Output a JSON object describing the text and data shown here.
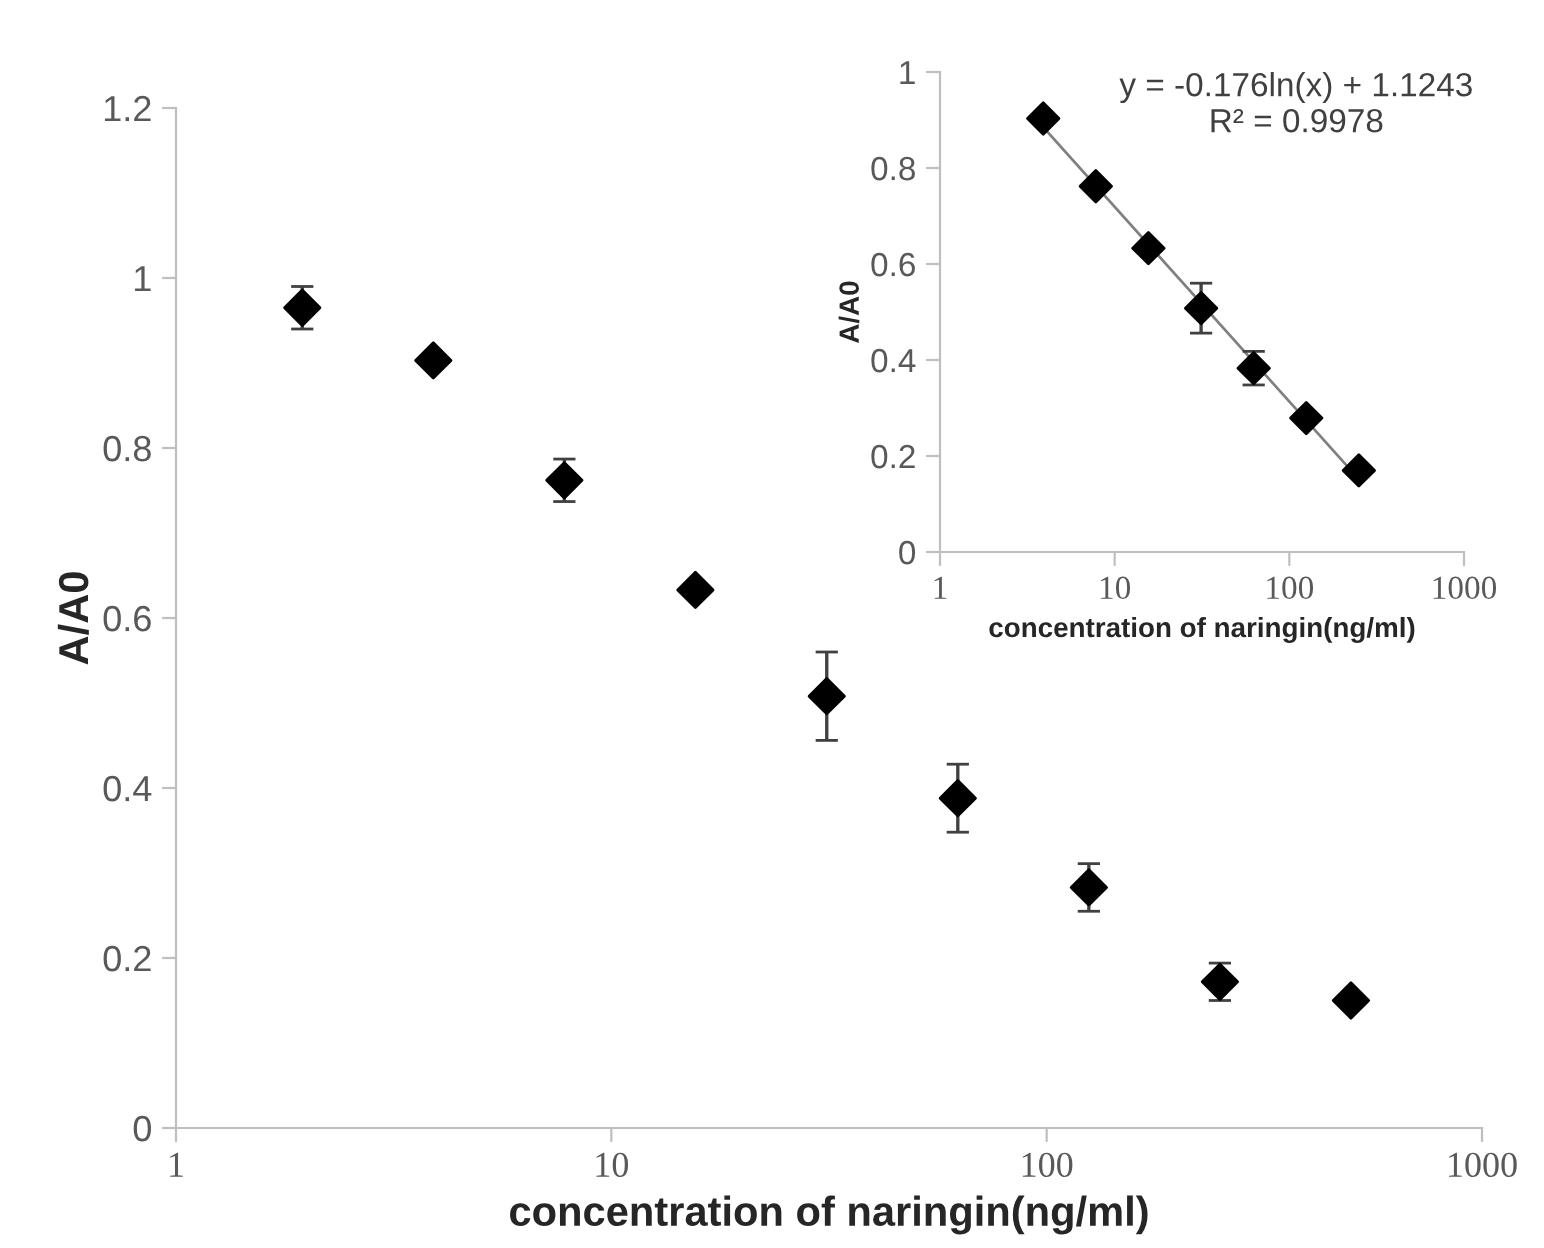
{
  "chart_data": [
    {
      "type": "scatter",
      "xlabel": "concentration of naringin(ng/ml)",
      "ylabel": "A/A0",
      "log": "x",
      "xlim": [
        1,
        1000
      ],
      "ylim": [
        0,
        1.2
      ],
      "xticks": [
        1,
        10,
        100,
        1000
      ],
      "yticks": [
        0,
        0.2,
        0.4,
        0.6,
        0.8,
        1,
        1.2
      ],
      "grid": false,
      "legend": false,
      "marker": "diamond",
      "series": [
        {
          "color": "#000000",
          "x": [
            1.95,
            3.9,
            7.8,
            15.6,
            31.25,
            62.5,
            125,
            250,
            500
          ],
          "values": [
            0.965,
            0.903,
            0.762,
            0.633,
            0.508,
            0.388,
            0.283,
            0.172,
            0.15
          ],
          "errors": [
            0.025,
            null,
            0.025,
            null,
            0.052,
            0.04,
            0.028,
            0.022,
            null
          ]
        }
      ]
    },
    {
      "type": "scatter",
      "xlabel": "concentration of naringin(ng/ml)",
      "ylabel": "A/A0",
      "log": "x",
      "xlim": [
        1,
        1000
      ],
      "ylim": [
        0,
        1
      ],
      "xticks": [
        1,
        10,
        100,
        1000
      ],
      "yticks": [
        0,
        0.2,
        0.4,
        0.6,
        0.8,
        1
      ],
      "grid": false,
      "legend": false,
      "marker": "diamond",
      "annotations": [
        "y = -0.176ln(x) + 1.1243",
        "R² = 0.9978"
      ],
      "series": [
        {
          "color": "#000000",
          "x": [
            3.9,
            7.8,
            15.6,
            31.25,
            62.5,
            125,
            250
          ],
          "values": [
            0.903,
            0.762,
            0.633,
            0.508,
            0.383,
            0.279,
            0.17
          ],
          "errors": [
            null,
            null,
            null,
            0.052,
            0.035,
            null,
            null
          ]
        },
        {
          "type": "line",
          "color": "#808080",
          "marker": "none",
          "x": [
            3.9,
            250
          ],
          "values": [
            0.885,
            0.152
          ]
        }
      ]
    }
  ]
}
